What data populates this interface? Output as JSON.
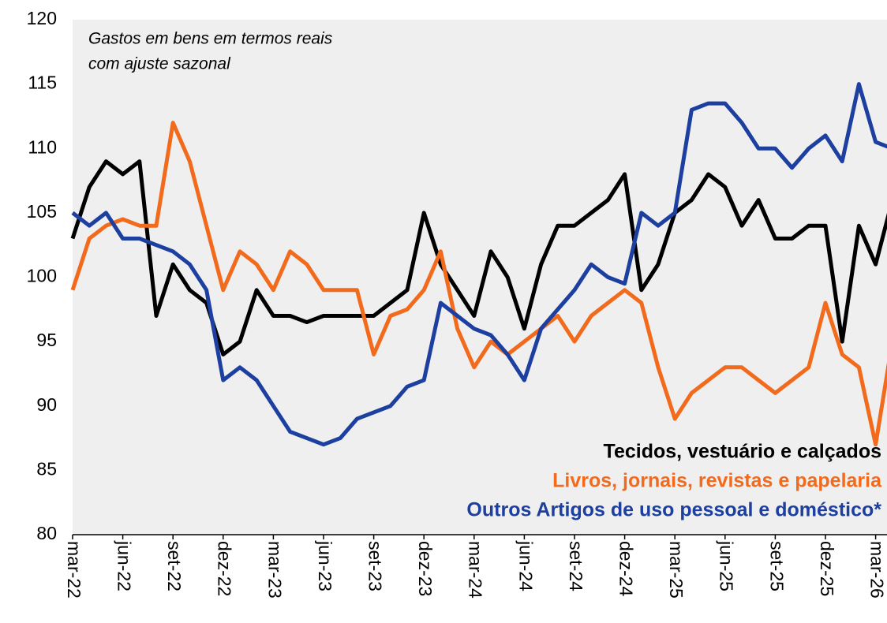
{
  "chart_data": {
    "type": "line",
    "title": "Gastos em bens em termos reais",
    "subtitle": "com ajuste sazonal",
    "categories": [
      "mar-22",
      null,
      null,
      "jun-22",
      null,
      null,
      "set-22",
      null,
      null,
      "dez-22",
      null,
      null,
      "mar-23",
      null,
      null,
      "jun-23",
      null,
      null,
      "set-23",
      null,
      null,
      "dez-23",
      null,
      null,
      "mar-24",
      null,
      null,
      "jun-24",
      null,
      null,
      "set-24",
      null,
      null,
      "dez-24",
      null,
      null,
      "mar-25",
      null,
      null,
      "jun-25",
      null,
      null,
      "set-25",
      null,
      null,
      "dez-25",
      null,
      null,
      "mar-26",
      null
    ],
    "series": [
      {
        "name": "Tecidos, vestuário e calçados",
        "color": "#000000",
        "values": [
          103,
          107,
          109,
          108,
          109,
          97,
          101,
          99,
          98,
          94,
          95,
          99,
          97,
          97,
          96.5,
          97,
          97,
          97,
          97,
          98,
          99,
          105,
          101,
          99,
          97,
          102,
          100,
          96,
          101,
          104,
          104,
          105,
          106,
          108,
          99,
          101,
          105,
          106,
          108,
          107,
          104,
          106,
          103,
          103,
          104,
          104,
          95,
          104,
          101,
          106
        ]
      },
      {
        "name": "Livros, jornais, revistas e papelaria",
        "color": "#f26b1d",
        "values": [
          99,
          103,
          104,
          104.5,
          104,
          104,
          112,
          109,
          104,
          99,
          102,
          101,
          99,
          102,
          101,
          99,
          99,
          99,
          94,
          97,
          97.5,
          99,
          102,
          96,
          93,
          95,
          94,
          95,
          96,
          97,
          95,
          97,
          98,
          99,
          98,
          93,
          89,
          91,
          92,
          93,
          93,
          92,
          91,
          92,
          93,
          98,
          94,
          93,
          87,
          95
        ]
      },
      {
        "name": "Outros Artigos de uso pessoal e doméstico*",
        "color": "#1c3fa0",
        "values": [
          105,
          104,
          105,
          103,
          103,
          102.5,
          102,
          101,
          99,
          92,
          93,
          92,
          90,
          88,
          87.5,
          87,
          87.5,
          89,
          89.5,
          90,
          91.5,
          92,
          98,
          97,
          96,
          95.5,
          94,
          92,
          96,
          97.5,
          99,
          101,
          100,
          99.5,
          105,
          104,
          105,
          113,
          113.5,
          113.5,
          112,
          110,
          110,
          108.5,
          110,
          111,
          109,
          115,
          110.5,
          110
        ]
      }
    ],
    "ylim": [
      80,
      120
    ],
    "yticks": [
      80,
      85,
      90,
      95,
      100,
      105,
      110,
      115,
      120
    ]
  }
}
